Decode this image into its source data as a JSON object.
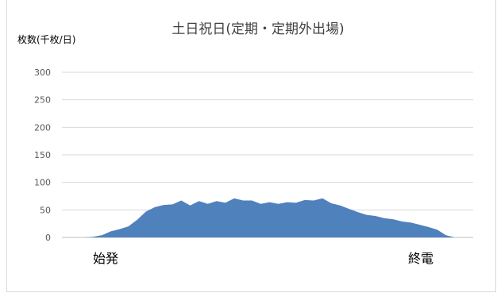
{
  "chart_data": {
    "type": "area",
    "title": "土日祝日(定期・定期外出場)",
    "ylabel": "枚数(千枚/日)",
    "xlabel": "",
    "ylim": [
      0,
      300
    ],
    "yticks": [
      0,
      50,
      100,
      150,
      200,
      250,
      300
    ],
    "grid": true,
    "x_start_label": "始発",
    "x_end_label": "終電",
    "color": "#4f81bd",
    "values": [
      0,
      0,
      1,
      4,
      11,
      15,
      20,
      32,
      47,
      55,
      59,
      60,
      67,
      58,
      66,
      61,
      66,
      63,
      71,
      67,
      67,
      61,
      64,
      61,
      64,
      63,
      68,
      67,
      71,
      62,
      58,
      52,
      46,
      41,
      39,
      35,
      33,
      29,
      27,
      23,
      19,
      14,
      4,
      0,
      0
    ]
  }
}
